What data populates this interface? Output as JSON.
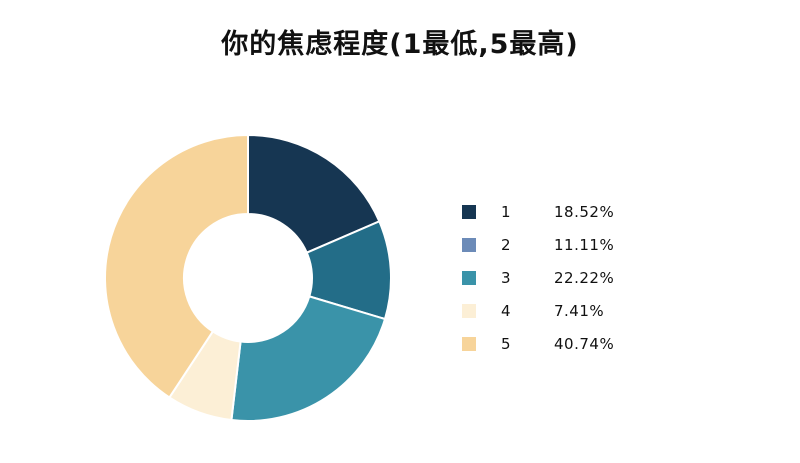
{
  "chart_data": {
    "type": "pie",
    "title": "你的焦虑程度(1最低,5最高)",
    "categories": [
      "1",
      "2",
      "3",
      "4",
      "5"
    ],
    "values": [
      18.52,
      11.11,
      22.22,
      7.41,
      40.74
    ],
    "value_labels": [
      "18.52%",
      "11.11%",
      "22.22%",
      "7.41%",
      "40.74%"
    ],
    "colors": [
      "#163652",
      "#6c8bb8",
      "#3a93a9",
      "#fcefd6",
      "#f7d49a"
    ],
    "slice_colors": [
      "#163652",
      "#236d88",
      "#3a93a9",
      "#fcefd6",
      "#f7d49a"
    ],
    "donut": true,
    "legend_position": "right"
  }
}
